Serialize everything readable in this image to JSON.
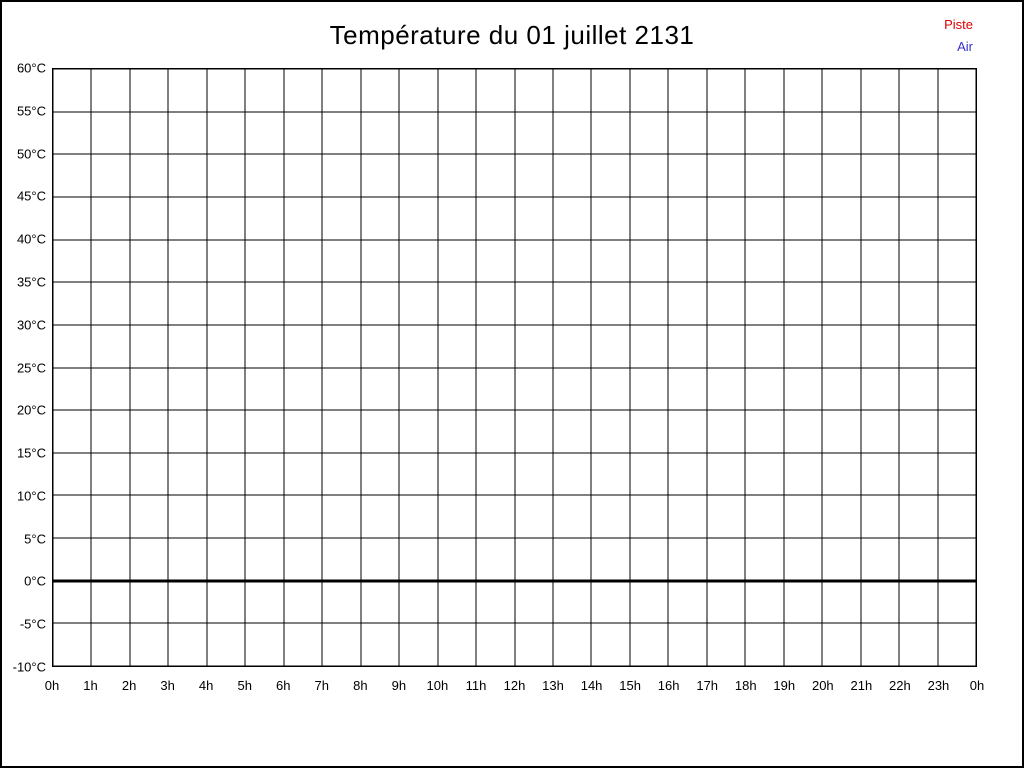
{
  "chart": {
    "colors": {
      "background": "#ffffff",
      "border": "#000000",
      "grid": "#000000",
      "text": "#000000"
    }
  },
  "chart_data": {
    "type": "line",
    "title": "Température du 01 juillet 2131",
    "xlabel": "",
    "ylabel": "",
    "x_tick_labels": [
      "0h",
      "1h",
      "2h",
      "3h",
      "4h",
      "5h",
      "6h",
      "7h",
      "8h",
      "9h",
      "10h",
      "11h",
      "12h",
      "13h",
      "14h",
      "15h",
      "16h",
      "17h",
      "18h",
      "19h",
      "20h",
      "21h",
      "22h",
      "23h",
      "0h"
    ],
    "y_tick_values": [
      60,
      55,
      50,
      45,
      40,
      35,
      30,
      25,
      20,
      15,
      10,
      5,
      0,
      -5,
      -10
    ],
    "y_tick_labels": [
      "60°C",
      "55°C",
      "50°C",
      "45°C",
      "40°C",
      "35°C",
      "30°C",
      "25°C",
      "20°C",
      "15°C",
      "10°C",
      "5°C",
      "0°C",
      "-5°C",
      "-10°C"
    ],
    "ylim": [
      -10,
      60
    ],
    "grid": true,
    "zero_line_value": 0,
    "legend_position": "top-right",
    "series": [
      {
        "name": "Piste",
        "color": "#e00000",
        "x": [],
        "values": []
      },
      {
        "name": "Air",
        "color": "#3333cc",
        "x": [],
        "values": []
      }
    ]
  }
}
